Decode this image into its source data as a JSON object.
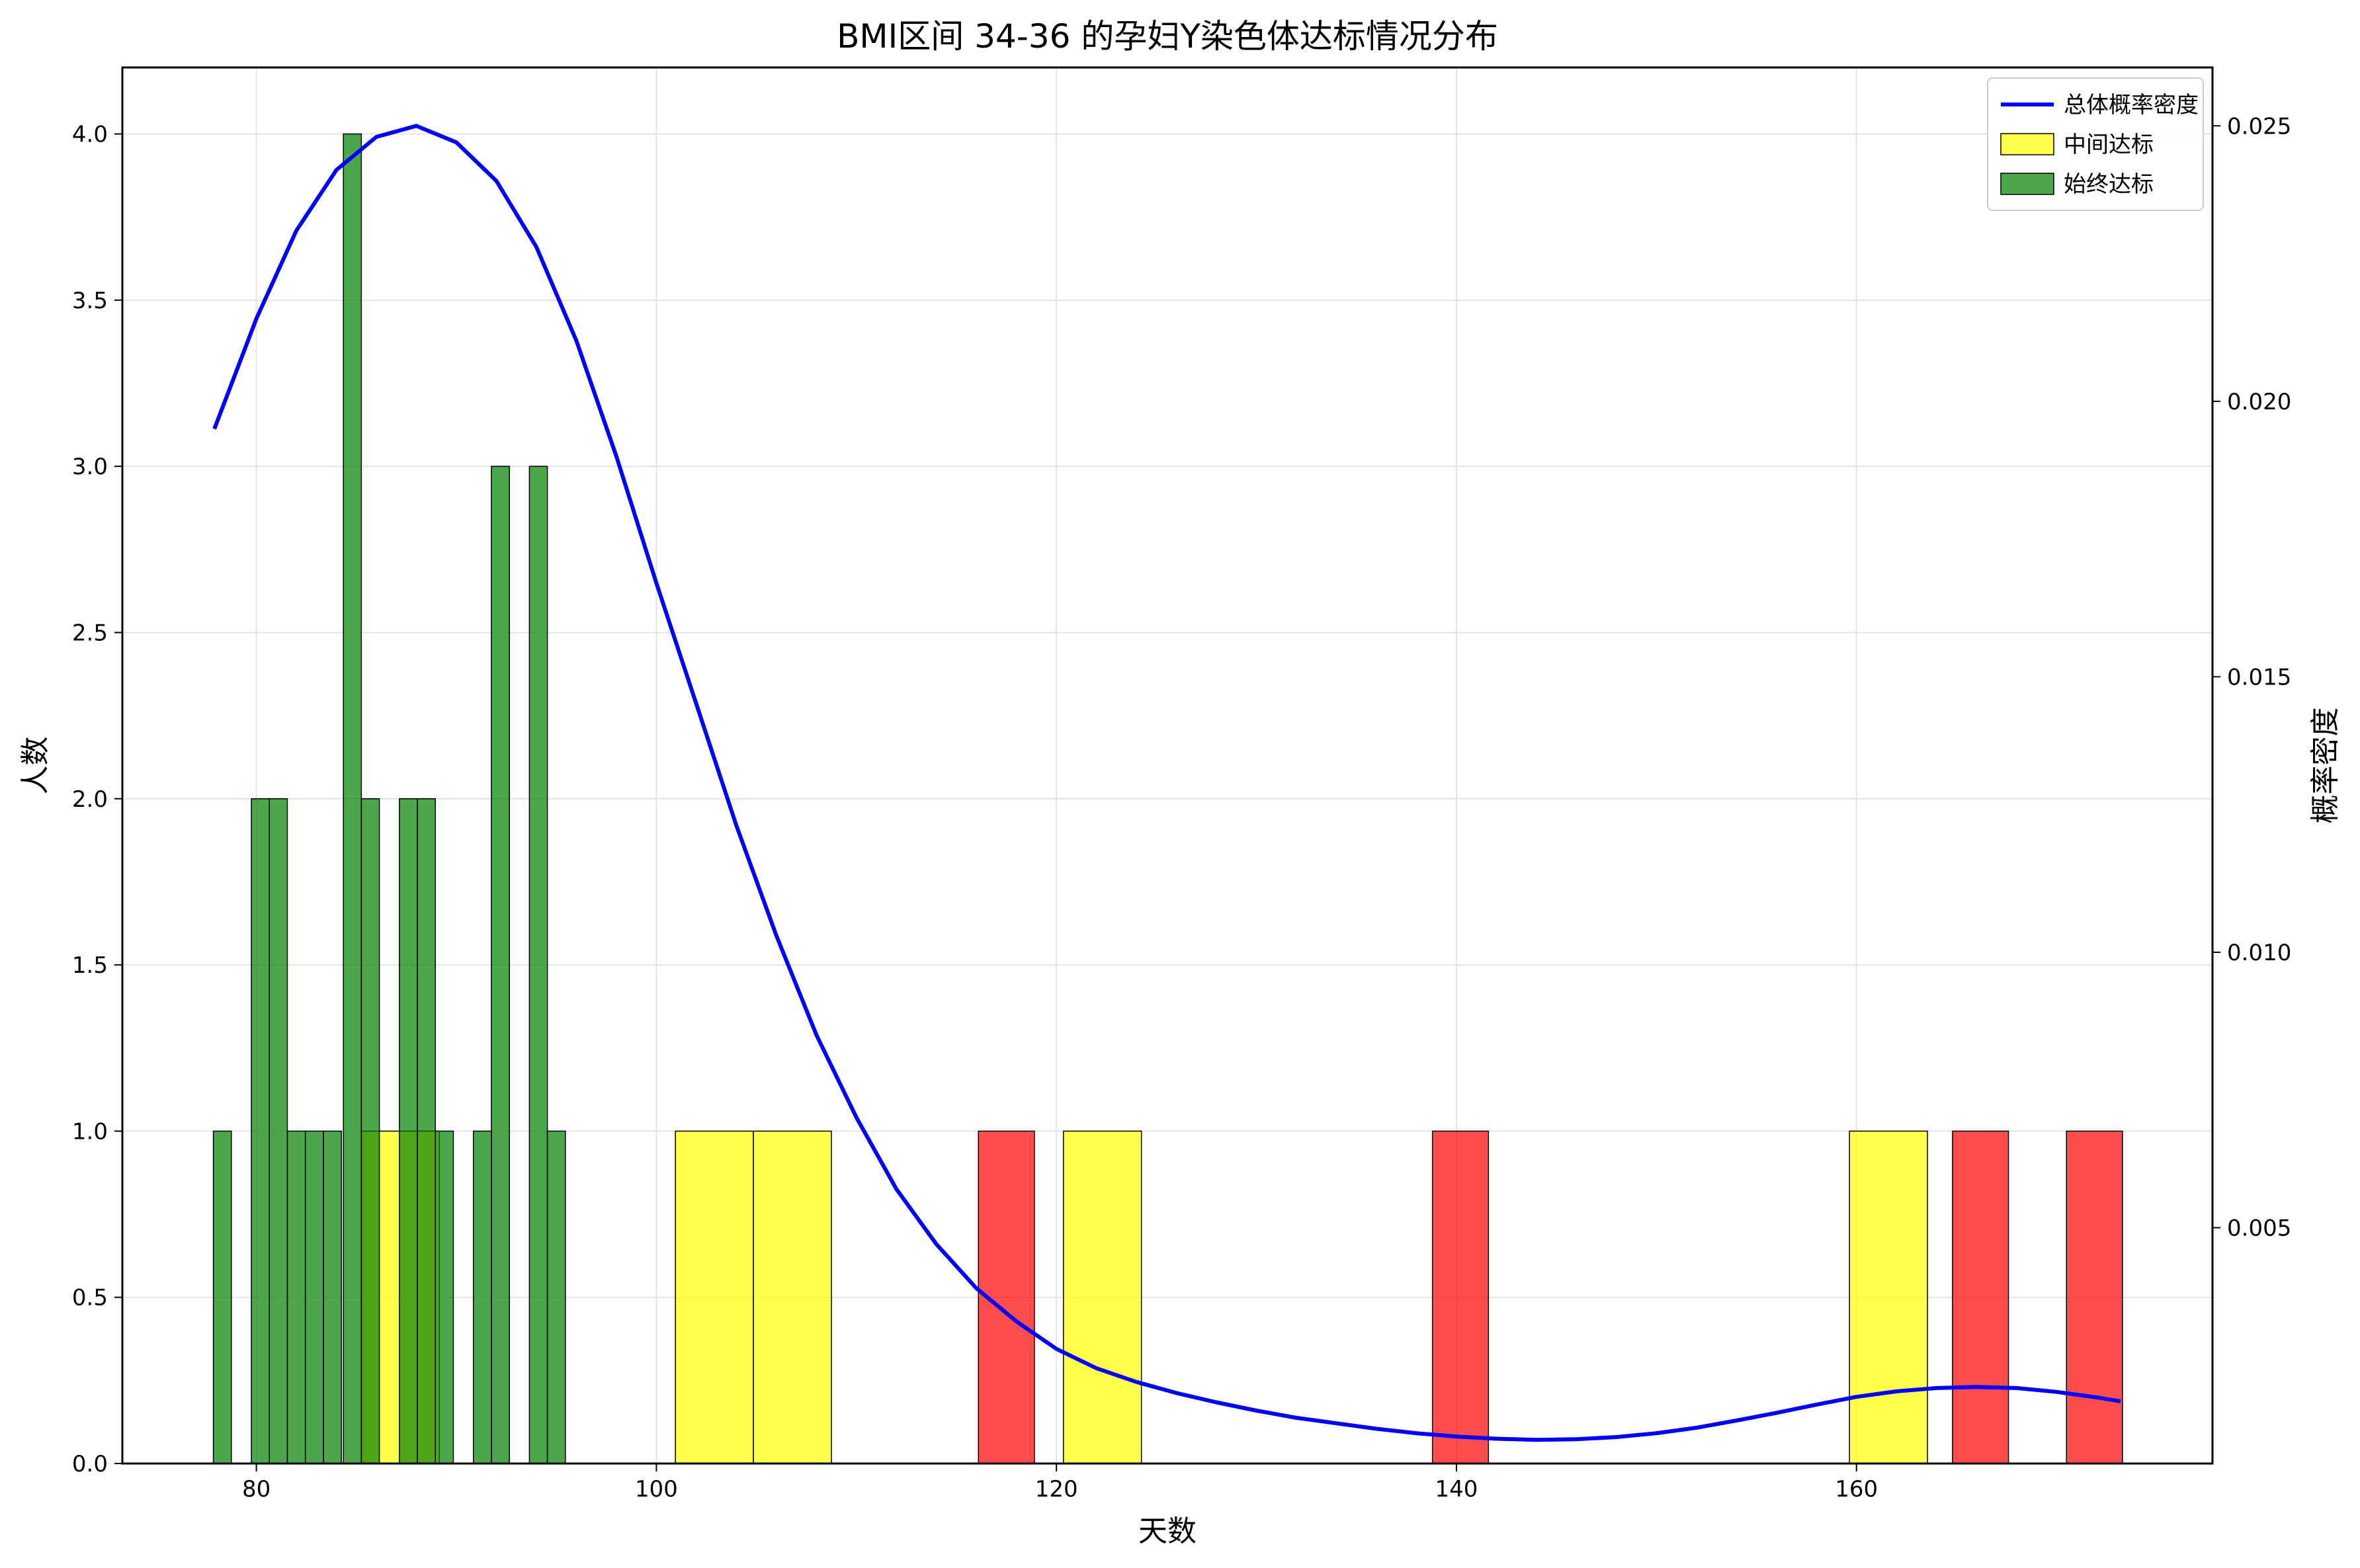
{
  "chart_data": {
    "type": "bar",
    "title": "BMI区间 34-36 的孕妇Y染色体达标情况分布",
    "xlabel": "天数",
    "ylabel": "人数",
    "y2label": "概率密度",
    "xlim": [
      73.3,
      177.8
    ],
    "ylim": [
      0,
      4.2
    ],
    "y2lim": [
      0.00072,
      0.02606
    ],
    "x_ticks": [
      80,
      100,
      120,
      140,
      160
    ],
    "x_tick_labels": [
      "80",
      "100",
      "120",
      "140",
      "160"
    ],
    "y_ticks": [
      0.0,
      0.5,
      1.0,
      1.5,
      2.0,
      2.5,
      3.0,
      3.5,
      4.0
    ],
    "y_tick_labels": [
      "0.0",
      "0.5",
      "1.0",
      "1.5",
      "2.0",
      "2.5",
      "3.0",
      "3.5",
      "4.0"
    ],
    "y2_ticks": [
      0.005,
      0.01,
      0.015,
      0.02,
      0.025
    ],
    "y2_tick_labels": [
      "0.005",
      "0.010",
      "0.015",
      "0.020",
      "0.025"
    ],
    "grid": true,
    "legend_position": "top-right",
    "legend": [
      {
        "label": "总体概率密度",
        "kind": "line",
        "color": "#0000ff"
      },
      {
        "label": "中间达标",
        "kind": "patch",
        "color": "#ffff00"
      },
      {
        "label": "始终达标",
        "kind": "patch",
        "color": "#008000"
      }
    ],
    "series": [
      {
        "name": "中间达标",
        "color": "#ffff00",
        "bar_width": 3.9,
        "bars": [
          {
            "x": 87.2,
            "value": 1
          },
          {
            "x": 102.9,
            "value": 1
          },
          {
            "x": 106.8,
            "value": 1
          },
          {
            "x": 122.3,
            "value": 1
          },
          {
            "x": 161.6,
            "value": 1
          }
        ]
      },
      {
        "color": "#ff0000",
        "bar_width": 2.8,
        "bars": [
          {
            "x": 117.5,
            "value": 1
          },
          {
            "x": 140.2,
            "value": 1
          },
          {
            "x": 166.2,
            "value": 1
          },
          {
            "x": 171.9,
            "value": 1
          }
        ]
      },
      {
        "name": "始终达标",
        "color": "#008000",
        "bar_width": 0.9,
        "bars": [
          {
            "x": 78.3,
            "value": 1
          },
          {
            "x": 80.2,
            "value": 2
          },
          {
            "x": 81.1,
            "value": 2
          },
          {
            "x": 82.0,
            "value": 1
          },
          {
            "x": 82.9,
            "value": 1
          },
          {
            "x": 83.8,
            "value": 1
          },
          {
            "x": 84.8,
            "value": 4
          },
          {
            "x": 85.7,
            "value": 2
          },
          {
            "x": 87.6,
            "value": 2
          },
          {
            "x": 88.5,
            "value": 2
          },
          {
            "x": 89.4,
            "value": 1
          },
          {
            "x": 91.3,
            "value": 1
          },
          {
            "x": 92.2,
            "value": 3
          },
          {
            "x": 94.1,
            "value": 3
          },
          {
            "x": 95.0,
            "value": 1
          }
        ]
      },
      {
        "name": "总体概率密度",
        "kind": "line",
        "axis": "right",
        "color": "#0000ff",
        "points": [
          [
            77.9,
            0.0195
          ],
          [
            80.0,
            0.0215
          ],
          [
            82.0,
            0.0231
          ],
          [
            84.0,
            0.0242
          ],
          [
            86.0,
            0.0248
          ],
          [
            88.0,
            0.025
          ],
          [
            90.0,
            0.0247
          ],
          [
            92.0,
            0.024
          ],
          [
            94.0,
            0.0228
          ],
          [
            96.0,
            0.0211
          ],
          [
            98.0,
            0.019
          ],
          [
            100.0,
            0.0167
          ],
          [
            102.0,
            0.0145
          ],
          [
            104.0,
            0.0123
          ],
          [
            106.0,
            0.0103
          ],
          [
            108.0,
            0.0085
          ],
          [
            110.0,
            0.007
          ],
          [
            112.0,
            0.0057
          ],
          [
            114.0,
            0.0047
          ],
          [
            116.0,
            0.0039
          ],
          [
            118.0,
            0.0033
          ],
          [
            120.0,
            0.0028
          ],
          [
            122.0,
            0.00245
          ],
          [
            124.0,
            0.0022
          ],
          [
            126.0,
            0.002
          ],
          [
            128.0,
            0.00183
          ],
          [
            130.0,
            0.00168
          ],
          [
            132.0,
            0.00155
          ],
          [
            134.0,
            0.00145
          ],
          [
            136.0,
            0.00135
          ],
          [
            138.0,
            0.00127
          ],
          [
            140.0,
            0.00121
          ],
          [
            142.0,
            0.00117
          ],
          [
            144.0,
            0.00115
          ],
          [
            146.0,
            0.00116
          ],
          [
            148.0,
            0.0012
          ],
          [
            150.0,
            0.00127
          ],
          [
            152.0,
            0.00137
          ],
          [
            154.0,
            0.0015
          ],
          [
            156.0,
            0.00164
          ],
          [
            158.0,
            0.00179
          ],
          [
            160.0,
            0.00193
          ],
          [
            162.0,
            0.00203
          ],
          [
            164.0,
            0.00209
          ],
          [
            166.0,
            0.00211
          ],
          [
            168.0,
            0.00209
          ],
          [
            170.0,
            0.00202
          ],
          [
            172.0,
            0.00192
          ],
          [
            173.2,
            0.00185
          ]
        ]
      }
    ]
  }
}
